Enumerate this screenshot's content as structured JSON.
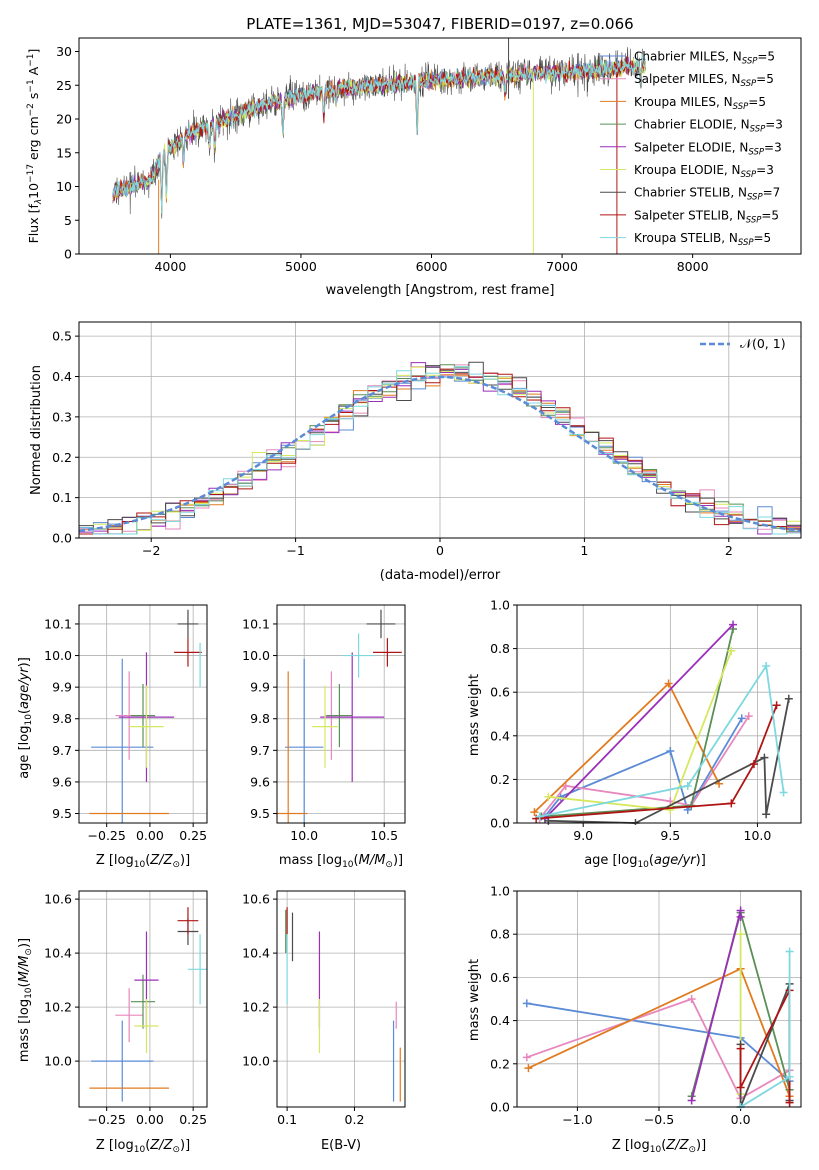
{
  "figure": {
    "title": "PLATE=1361, MJD=53047, FIBERID=0197, z=0.066"
  },
  "colors": {
    "series": [
      "#5b8bd6",
      "#e787bd",
      "#e07b20",
      "#5a8f56",
      "#9a2fb8",
      "#d6e860",
      "#4b4b4b",
      "#b01515",
      "#7dd8df"
    ]
  },
  "chart_data": [
    {
      "panel": "spectrum",
      "type": "line",
      "xlabel": "wavelength [Angstrom, rest frame]",
      "ylabel": "Flux [f_λ10^{-17} erg cm^{-2} s^{-1} A^{-1}]",
      "ylabel_parts": {
        "a": "Flux [f",
        "b": "λ",
        "c": "10",
        "d": "−17",
        "e": " erg cm",
        "f": "−2",
        "g": " s",
        "h": "−1",
        "i": " A",
        "j": "−1",
        "k": "]"
      },
      "xlim": [
        3300,
        8830
      ],
      "ylim": [
        0,
        32
      ],
      "xticks": [
        4000,
        5000,
        6000,
        7000,
        8000
      ],
      "yticks": [
        0,
        5,
        10,
        15,
        20,
        25,
        30
      ],
      "legend": [
        "Chabrier MILES, N_SSP=5",
        "Salpeter MILES, N_SSP=5",
        "Kroupa MILES, N_SSP=5",
        "Chabrier ELODIE, N_SSP=3",
        "Salpeter ELODIE, N_SSP=3",
        "Kroupa ELODIE, N_SSP=3",
        "Chabrier STELIB, N_SSP=7",
        "Salpeter STELIB, N_SSP=5",
        "Kroupa STELIB, N_SSP=5"
      ],
      "legend_parts": [
        {
          "a": "Chabrier MILES, N",
          "b": "SSP",
          "c": "=5"
        },
        {
          "a": "Salpeter MILES, N",
          "b": "SSP",
          "c": "=5"
        },
        {
          "a": "Kroupa MILES, N",
          "b": "SSP",
          "c": "=5"
        },
        {
          "a": "Chabrier ELODIE, N",
          "b": "SSP",
          "c": "=3"
        },
        {
          "a": "Salpeter ELODIE, N",
          "b": "SSP",
          "c": "=3"
        },
        {
          "a": "Kroupa ELODIE, N",
          "b": "SSP",
          "c": "=3"
        },
        {
          "a": "Chabrier STELIB, N",
          "b": "SSP",
          "c": "=7"
        },
        {
          "a": "Salpeter STELIB, N",
          "b": "SSP",
          "c": "=5"
        },
        {
          "a": "Kroupa STELIB, N",
          "b": "SSP",
          "c": "=5"
        }
      ],
      "legend_position": "right",
      "data_range": [
        3560,
        7640
      ],
      "continuum": [
        [
          3560,
          9
        ],
        [
          3700,
          10
        ],
        [
          3850,
          11
        ],
        [
          3950,
          15
        ],
        [
          4100,
          17.5
        ],
        [
          4300,
          19
        ],
        [
          4500,
          20.5
        ],
        [
          4700,
          22
        ],
        [
          4900,
          23
        ],
        [
          5100,
          23.8
        ],
        [
          5300,
          24.5
        ],
        [
          5600,
          25
        ],
        [
          5900,
          25.5
        ],
        [
          6200,
          26
        ],
        [
          6500,
          26.3
        ],
        [
          6800,
          26.7
        ],
        [
          7100,
          27
        ],
        [
          7400,
          27.5
        ],
        [
          7640,
          28
        ]
      ]
    },
    {
      "panel": "residuals",
      "type": "step",
      "xlabel": "(data-model)/error",
      "ylabel": "Normed distribution",
      "xlim": [
        -2.5,
        2.5
      ],
      "ylim": [
        0,
        0.535
      ],
      "xticks": [
        -2,
        -1,
        0,
        1,
        2
      ],
      "xtick_labels": [
        "−2",
        "−1",
        "0",
        "1",
        "2"
      ],
      "yticks": [
        0,
        0.1,
        0.2,
        0.3,
        0.4,
        0.5
      ],
      "ytick_labels": [
        "0.0",
        "0.1",
        "0.2",
        "0.3",
        "0.4",
        "0.5"
      ],
      "legend": [
        "𝒩(0, 1)"
      ],
      "legend_position": "top-right",
      "grid": true,
      "bin_width": 0.1
    },
    {
      "panel": "age_vs_Z",
      "type": "errorbar",
      "xlabel": "Z [log10(Z/Z⊙)]",
      "ylabel": "age [log10(age/yr)]",
      "xlim": [
        -0.41,
        0.33
      ],
      "ylim": [
        9.47,
        10.16
      ],
      "xticks": [
        -0.25,
        0.0,
        0.25
      ],
      "xtick_labels": [
        "−0.25",
        "0.00",
        "0.25"
      ],
      "yticks": [
        9.5,
        9.6,
        9.7,
        9.8,
        9.9,
        10.0,
        10.1
      ],
      "ytick_labels": [
        "9.5",
        "9.6",
        "9.7",
        "9.8",
        "9.9",
        "10.0",
        "10.1"
      ],
      "grid": true,
      "points": [
        {
          "x": -0.16,
          "xerr": 0.18,
          "y": 9.71,
          "yerr": 0.28
        },
        {
          "x": -0.12,
          "xerr": 0.08,
          "y": 9.81,
          "yerr": 0.14
        },
        {
          "x": -0.12,
          "xerr": 0.23,
          "y": 9.5,
          "yerr": 0.0
        },
        {
          "x": -0.04,
          "xerr": 0.07,
          "y": 9.81,
          "yerr": 0.1
        },
        {
          "x": -0.02,
          "xerr": 0.16,
          "y": 9.805,
          "yerr": 0.205
        },
        {
          "x": -0.02,
          "xerr": 0.1,
          "y": 9.775,
          "yerr": 0.13
        },
        {
          "x": 0.22,
          "xerr": 0.06,
          "y": 10.1,
          "yerr": 0.045
        },
        {
          "x": 0.22,
          "xerr": 0.08,
          "y": 10.01,
          "yerr": 0.045
        },
        {
          "x": 0.29,
          "xerr": 0.0,
          "y": 9.97,
          "yerr": 0.07
        }
      ]
    },
    {
      "panel": "age_vs_mass",
      "type": "errorbar",
      "xlabel": "mass [log10(M/M⊙)]",
      "ylabel": "",
      "xlim": [
        9.83,
        10.63
      ],
      "ylim": [
        9.47,
        10.16
      ],
      "xticks": [
        10.0,
        10.5
      ],
      "xtick_labels": [
        "10.0",
        "10.5"
      ],
      "yticks": [
        9.5,
        9.6,
        9.7,
        9.8,
        9.9,
        10.0,
        10.1
      ],
      "ytick_labels": [
        "9.5",
        "9.6",
        "9.7",
        "9.8",
        "9.9",
        "10.0",
        "10.1"
      ],
      "grid": true,
      "points": [
        {
          "x": 10.0,
          "xerr": 0.12,
          "y": 9.71,
          "yerr": 0.28
        },
        {
          "x": 10.17,
          "xerr": 0.04,
          "y": 9.81,
          "yerr": 0.14
        },
        {
          "x": 9.9,
          "xerr": 0.12,
          "y": 9.5,
          "yerr": 0.45
        },
        {
          "x": 10.22,
          "xerr": 0.08,
          "y": 9.81,
          "yerr": 0.1
        },
        {
          "x": 10.3,
          "xerr": 0.2,
          "y": 9.805,
          "yerr": 0.205
        },
        {
          "x": 10.13,
          "xerr": 0.08,
          "y": 9.775,
          "yerr": 0.13
        },
        {
          "x": 10.48,
          "xerr": 0.09,
          "y": 10.1,
          "yerr": 0.045
        },
        {
          "x": 10.52,
          "xerr": 0.09,
          "y": 10.01,
          "yerr": 0.045
        },
        {
          "x": 10.34,
          "xerr": 0.1,
          "y": 10.0,
          "yerr": 0.07
        }
      ]
    },
    {
      "panel": "mass_weight_vs_age",
      "type": "line",
      "xlabel": "age [log10(age/yr)]",
      "ylabel": "mass weight",
      "xlim": [
        8.62,
        10.25
      ],
      "ylim": [
        0,
        1
      ],
      "xticks": [
        9.0,
        9.5,
        10.0
      ],
      "xtick_labels": [
        "9.0",
        "9.5",
        "10.0"
      ],
      "yticks": [
        0,
        0.2,
        0.4,
        0.6,
        0.8,
        1.0
      ],
      "ytick_labels": [
        "0.0",
        "0.2",
        "0.4",
        "0.6",
        "0.8",
        "1.0"
      ],
      "grid": true,
      "series": [
        {
          "x": [
            8.78,
            8.87,
            9.5,
            9.6,
            9.91
          ],
          "y": [
            0.03,
            0.12,
            0.33,
            0.06,
            0.48
          ]
        },
        {
          "x": [
            8.75,
            8.9,
            9.5,
            9.62,
            9.95
          ],
          "y": [
            0.02,
            0.17,
            0.1,
            0.08,
            0.49
          ]
        },
        {
          "x": [
            8.72,
            9.49,
            9.78
          ],
          "y": [
            0.05,
            0.64,
            0.18
          ]
        },
        {
          "x": [
            8.76,
            9.62,
            9.86
          ],
          "y": [
            0.03,
            0.08,
            0.89
          ]
        },
        {
          "x": [
            8.78,
            9.86
          ],
          "y": [
            0.02,
            0.91
          ]
        },
        {
          "x": [
            8.8,
            9.5,
            9.85
          ],
          "y": [
            0.12,
            0.06,
            0.79
          ]
        },
        {
          "x": [
            8.8,
            9.3,
            10.04,
            10.05,
            10.18
          ],
          "y": [
            0.01,
            0.0,
            0.3,
            0.04,
            0.57
          ]
        },
        {
          "x": [
            8.73,
            9.85,
            9.98,
            10.11
          ],
          "y": [
            0.02,
            0.09,
            0.27,
            0.54
          ]
        },
        {
          "x": [
            8.75,
            9.6,
            10.05,
            10.15
          ],
          "y": [
            0.03,
            0.17,
            0.72,
            0.14
          ]
        }
      ]
    },
    {
      "panel": "mass_vs_Z",
      "type": "errorbar",
      "xlabel": "Z [log10(Z/Z⊙)]",
      "ylabel": "mass [log10(M/M⊙)]",
      "xlim": [
        -0.41,
        0.33
      ],
      "ylim": [
        9.83,
        10.63
      ],
      "xticks": [
        -0.25,
        0.0,
        0.25
      ],
      "xtick_labels": [
        "−0.25",
        "0.00",
        "0.25"
      ],
      "yticks": [
        10.0,
        10.2,
        10.4,
        10.6
      ],
      "ytick_labels": [
        "10.0",
        "10.2",
        "10.4",
        "10.6"
      ],
      "grid": true,
      "points": [
        {
          "x": -0.16,
          "xerr": 0.18,
          "y": 10.0,
          "yerr": 0.15
        },
        {
          "x": -0.12,
          "xerr": 0.08,
          "y": 10.17,
          "yerr": 0.1
        },
        {
          "x": -0.12,
          "xerr": 0.23,
          "y": 9.9,
          "yerr": 0.0
        },
        {
          "x": -0.04,
          "xerr": 0.07,
          "y": 10.22,
          "yerr": 0.1
        },
        {
          "x": -0.02,
          "xerr": 0.07,
          "y": 10.3,
          "yerr": 0.18
        },
        {
          "x": -0.02,
          "xerr": 0.07,
          "y": 10.13,
          "yerr": 0.1
        },
        {
          "x": 0.22,
          "xerr": 0.06,
          "y": 10.48,
          "yerr": 0.05
        },
        {
          "x": 0.22,
          "xerr": 0.06,
          "y": 10.52,
          "yerr": 0.05
        },
        {
          "x": 0.29,
          "xerr": 0.07,
          "y": 10.34,
          "yerr": 0.13
        }
      ]
    },
    {
      "panel": "mass_vs_EBV",
      "type": "errorbar",
      "xlabel": "E(B-V)",
      "ylabel": "",
      "xlim": [
        0.085,
        0.275
      ],
      "ylim": [
        9.83,
        10.63
      ],
      "xticks": [
        0.1,
        0.2
      ],
      "xtick_labels": [
        "0.1",
        "0.2"
      ],
      "yticks": [
        10.0,
        10.2,
        10.4,
        10.6
      ],
      "ytick_labels": [
        "10.0",
        "10.2",
        "10.4",
        "10.6"
      ],
      "grid": true,
      "points": [
        {
          "x": 0.258,
          "xerr": 0.0,
          "y": 10.0,
          "yerr": 0.15
        },
        {
          "x": 0.262,
          "xerr": 0.0,
          "y": 10.17,
          "yerr": 0.05
        },
        {
          "x": 0.268,
          "xerr": 0.0,
          "y": 9.95,
          "yerr": 0.1
        },
        {
          "x": 0.098,
          "xerr": 0.0,
          "y": 10.48,
          "yerr": 0.08
        },
        {
          "x": 0.148,
          "xerr": 0.0,
          "y": 10.3,
          "yerr": 0.18
        },
        {
          "x": 0.148,
          "xerr": 0.0,
          "y": 10.13,
          "yerr": 0.1
        },
        {
          "x": 0.108,
          "xerr": 0.0,
          "y": 10.46,
          "yerr": 0.09
        },
        {
          "x": 0.1,
          "xerr": 0.0,
          "y": 10.52,
          "yerr": 0.05
        },
        {
          "x": 0.1,
          "xerr": 0.0,
          "y": 10.34,
          "yerr": 0.13
        }
      ]
    },
    {
      "panel": "mass_weight_vs_Z",
      "type": "line",
      "xlabel": "Z [log10(Z/Z⊙)]",
      "ylabel": "mass weight",
      "xlim": [
        -1.37,
        0.37
      ],
      "ylim": [
        0,
        1
      ],
      "xticks": [
        -1.0,
        -0.5,
        0.0
      ],
      "xtick_labels": [
        "−1.0",
        "−0.5",
        "0.0"
      ],
      "yticks": [
        0,
        0.2,
        0.4,
        0.6,
        0.8,
        1.0
      ],
      "ytick_labels": [
        "0.0",
        "0.2",
        "0.4",
        "0.6",
        "0.8",
        "1.0"
      ],
      "grid": true,
      "series": [
        {
          "x": [
            -1.31,
            0.0,
            0.3
          ],
          "y": [
            0.48,
            0.32,
            0.12
          ]
        },
        {
          "x": [
            -1.31,
            -0.3,
            0.0,
            0.3
          ],
          "y": [
            0.23,
            0.5,
            0.04,
            0.17
          ]
        },
        {
          "x": [
            -1.3,
            0.0,
            0.3
          ],
          "y": [
            0.18,
            0.64,
            0.05
          ]
        },
        {
          "x": [
            -0.3,
            0.0,
            0.3
          ],
          "y": [
            0.05,
            0.9,
            0.08
          ]
        },
        {
          "x": [
            -0.3,
            0.0,
            0.0
          ],
          "y": [
            0.03,
            0.91,
            0.88
          ]
        },
        {
          "x": [
            0.0,
            0.0
          ],
          "y": [
            0.06,
            0.8
          ]
        },
        {
          "x": [
            0.0,
            0.0,
            0.3,
            0.3
          ],
          "y": [
            0.29,
            0.0,
            0.57,
            0.03
          ]
        },
        {
          "x": [
            0.0,
            0.0,
            0.3,
            0.3
          ],
          "y": [
            0.27,
            0.09,
            0.54,
            0.02
          ]
        },
        {
          "x": [
            0.3,
            0.3,
            0.0
          ],
          "y": [
            0.72,
            0.14,
            0.0
          ]
        }
      ]
    }
  ]
}
